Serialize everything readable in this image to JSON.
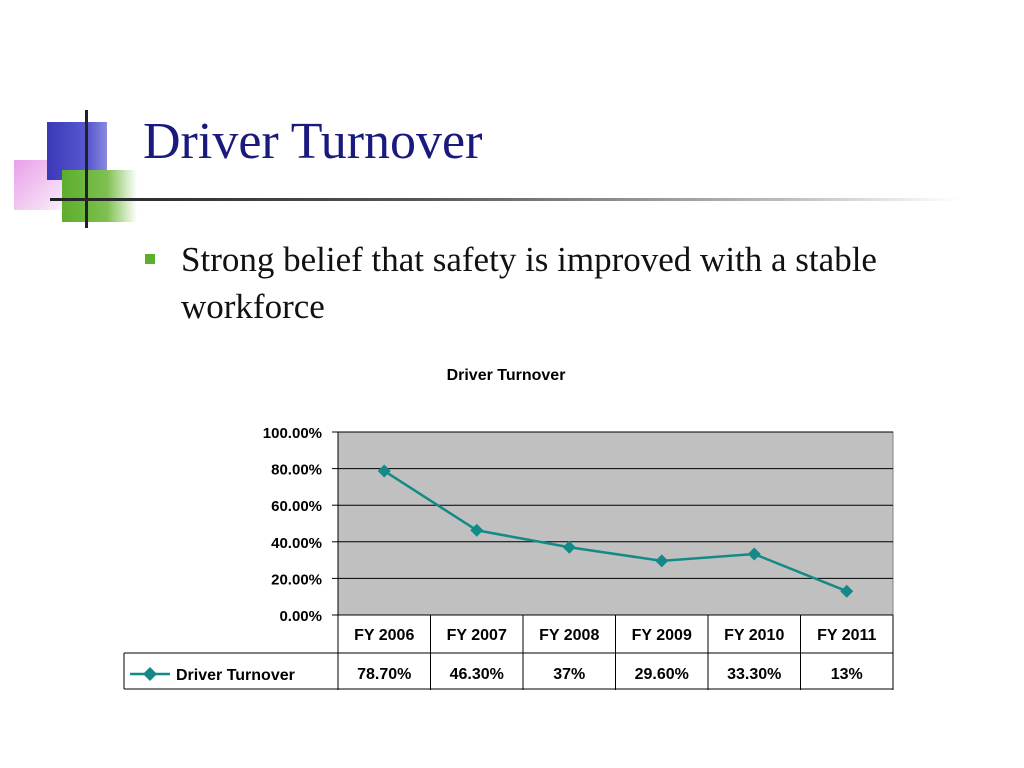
{
  "slide": {
    "title": "Driver Turnover",
    "bullet": "Strong belief that safety is improved with a stable workforce"
  },
  "colors": {
    "title": "#1a1a7e",
    "bullet_marker": "#5cae2c",
    "series_line": "#138a87",
    "plot_area": "#c0c0c0"
  },
  "chart_data": {
    "type": "line",
    "title": "Driver Turnover",
    "categories": [
      "FY 2006",
      "FY 2007",
      "FY 2008",
      "FY 2009",
      "FY 2010",
      "FY 2011"
    ],
    "series": [
      {
        "name": "Driver Turnover",
        "values": [
          0.787,
          0.463,
          0.37,
          0.296,
          0.333,
          0.13
        ],
        "labels": [
          "78.70%",
          "46.30%",
          "37%",
          "29.60%",
          "33.30%",
          "13%"
        ],
        "marker": "diamond"
      }
    ],
    "y_ticks": [
      "0.00%",
      "20.00%",
      "40.00%",
      "60.00%",
      "80.00%",
      "100.00%"
    ],
    "ylim": [
      0,
      1
    ],
    "grid": true,
    "legend": "data-table"
  }
}
